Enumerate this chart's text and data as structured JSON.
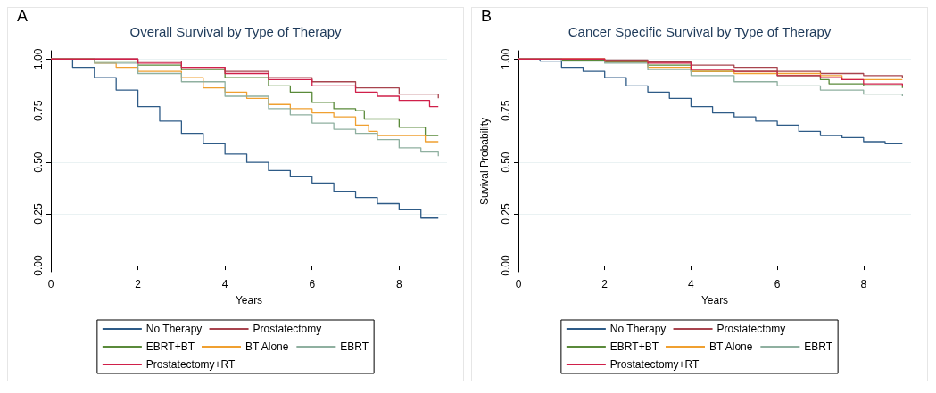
{
  "chart_data": [
    {
      "type": "step",
      "title": "Overall Survival by Type of Therapy",
      "xlabel": "Years",
      "annotations": [
        "A"
      ],
      "xlim": [
        0,
        9.1
      ],
      "xticks": [
        0,
        2,
        4,
        6,
        8
      ],
      "ylim": [
        -0.03,
        1.04
      ],
      "yticks": [
        {
          "value": 0,
          "label": "0.00"
        },
        {
          "value": 0.25,
          "label": "0.25"
        },
        {
          "value": 0.5,
          "label": "0.50"
        },
        {
          "value": 0.75,
          "label": "0.75"
        },
        {
          "value": 1,
          "label": "1.00"
        }
      ],
      "grid": "y",
      "legend": "bottom",
      "line_style": "solid",
      "marker": "none",
      "series": [
        {
          "name": "No Therapy",
          "color": "#2e5b87",
          "x": [
            0,
            0.5,
            1,
            1.5,
            2,
            2.5,
            3,
            3.5,
            4,
            4.5,
            5,
            5.5,
            6,
            6.5,
            7,
            7.5,
            8,
            8.5,
            8.9
          ],
          "values": [
            1,
            0.96,
            0.91,
            0.85,
            0.77,
            0.7,
            0.64,
            0.59,
            0.54,
            0.5,
            0.46,
            0.43,
            0.4,
            0.36,
            0.33,
            0.3,
            0.27,
            0.23,
            0.23
          ]
        },
        {
          "name": "Prostatectomy",
          "color": "#a8444e",
          "x": [
            0,
            1,
            2,
            3,
            4,
            5,
            6,
            7,
            8,
            8.9
          ],
          "values": [
            1,
            1,
            0.99,
            0.96,
            0.94,
            0.91,
            0.89,
            0.86,
            0.83,
            0.81
          ]
        },
        {
          "name": "EBRT+BT",
          "color": "#5a8a3a",
          "x": [
            0,
            1,
            2,
            3,
            4,
            5,
            5.5,
            6,
            6.5,
            7,
            7.2,
            8,
            8.6,
            8.9
          ],
          "values": [
            1,
            0.99,
            0.97,
            0.95,
            0.91,
            0.87,
            0.84,
            0.79,
            0.76,
            0.75,
            0.71,
            0.67,
            0.63,
            0.63
          ]
        },
        {
          "name": "BT Alone",
          "color": "#f0a030",
          "x": [
            0,
            1,
            1.5,
            2,
            3,
            3.5,
            4,
            4.5,
            5,
            5.5,
            6,
            6.5,
            7,
            7.3,
            7.5,
            8.6,
            8.9
          ],
          "values": [
            1,
            0.98,
            0.96,
            0.94,
            0.91,
            0.86,
            0.84,
            0.81,
            0.78,
            0.76,
            0.74,
            0.72,
            0.68,
            0.65,
            0.63,
            0.6,
            0.6
          ]
        },
        {
          "name": "EBRT",
          "color": "#8fb0a0",
          "x": [
            0,
            1,
            2,
            3,
            4,
            5,
            5.5,
            6,
            6.5,
            7,
            7.5,
            8,
            8.5,
            8.9
          ],
          "values": [
            1,
            0.98,
            0.93,
            0.89,
            0.82,
            0.76,
            0.73,
            0.69,
            0.66,
            0.64,
            0.61,
            0.57,
            0.55,
            0.53
          ]
        },
        {
          "name": "Prostatectomy+RT",
          "color": "#d0204a",
          "x": [
            0,
            1,
            2,
            3,
            4,
            5,
            6,
            7,
            7.5,
            8,
            8.7,
            8.9
          ],
          "values": [
            1,
            1,
            0.98,
            0.96,
            0.93,
            0.9,
            0.87,
            0.84,
            0.82,
            0.8,
            0.77,
            0.77
          ]
        }
      ]
    },
    {
      "type": "step",
      "title": "Cancer Specific Survival by Type of Therapy",
      "xlabel": "Years",
      "ylabel": "Suvival Probability",
      "annotations": [
        "B"
      ],
      "xlim": [
        0,
        9.1
      ],
      "xticks": [
        0,
        2,
        4,
        6,
        8
      ],
      "ylim": [
        -0.03,
        1.04
      ],
      "yticks": [
        {
          "value": 0,
          "label": "0.00"
        },
        {
          "value": 0.25,
          "label": "0.25"
        },
        {
          "value": 0.5,
          "label": "0.50"
        },
        {
          "value": 0.75,
          "label": "0.75"
        },
        {
          "value": 1,
          "label": "1.00"
        }
      ],
      "grid": "y",
      "legend": "bottom",
      "line_style": "solid",
      "marker": "none",
      "series": [
        {
          "name": "No Therapy",
          "color": "#2e5b87",
          "x": [
            0,
            0.5,
            1,
            1.5,
            2,
            2.5,
            3,
            3.5,
            4,
            4.5,
            5,
            5.5,
            6,
            6.5,
            7,
            7.5,
            8,
            8.5,
            8.9
          ],
          "values": [
            1,
            0.99,
            0.96,
            0.94,
            0.91,
            0.87,
            0.84,
            0.81,
            0.77,
            0.74,
            0.72,
            0.7,
            0.68,
            0.65,
            0.63,
            0.62,
            0.6,
            0.59,
            0.59
          ]
        },
        {
          "name": "Prostatectomy",
          "color": "#a8444e",
          "x": [
            0,
            2,
            3,
            4,
            5,
            6,
            7,
            8,
            8.9
          ],
          "values": [
            1,
            0.995,
            0.985,
            0.97,
            0.96,
            0.94,
            0.93,
            0.92,
            0.91
          ]
        },
        {
          "name": "EBRT+BT",
          "color": "#5a8a3a",
          "x": [
            0,
            1,
            2,
            3,
            4,
            5,
            6,
            7,
            7.2,
            8,
            8.9
          ],
          "values": [
            1,
            0.995,
            0.985,
            0.97,
            0.94,
            0.94,
            0.92,
            0.9,
            0.88,
            0.87,
            0.86
          ]
        },
        {
          "name": "BT Alone",
          "color": "#f0a030",
          "x": [
            0,
            2,
            3,
            4,
            5,
            6,
            7,
            7.5,
            8.9
          ],
          "values": [
            1,
            0.99,
            0.96,
            0.94,
            0.93,
            0.93,
            0.92,
            0.9,
            0.9
          ]
        },
        {
          "name": "EBRT",
          "color": "#8fb0a0",
          "x": [
            0,
            1,
            2,
            3,
            4,
            5,
            6,
            7,
            8,
            8.9
          ],
          "values": [
            1,
            0.99,
            0.98,
            0.95,
            0.92,
            0.89,
            0.87,
            0.85,
            0.83,
            0.82
          ]
        },
        {
          "name": "Prostatectomy+RT",
          "color": "#d0204a",
          "x": [
            0,
            2,
            3,
            4,
            5,
            6,
            7,
            7.5,
            8,
            8.9
          ],
          "values": [
            1,
            0.99,
            0.98,
            0.95,
            0.94,
            0.92,
            0.91,
            0.9,
            0.88,
            0.87
          ]
        }
      ]
    }
  ]
}
